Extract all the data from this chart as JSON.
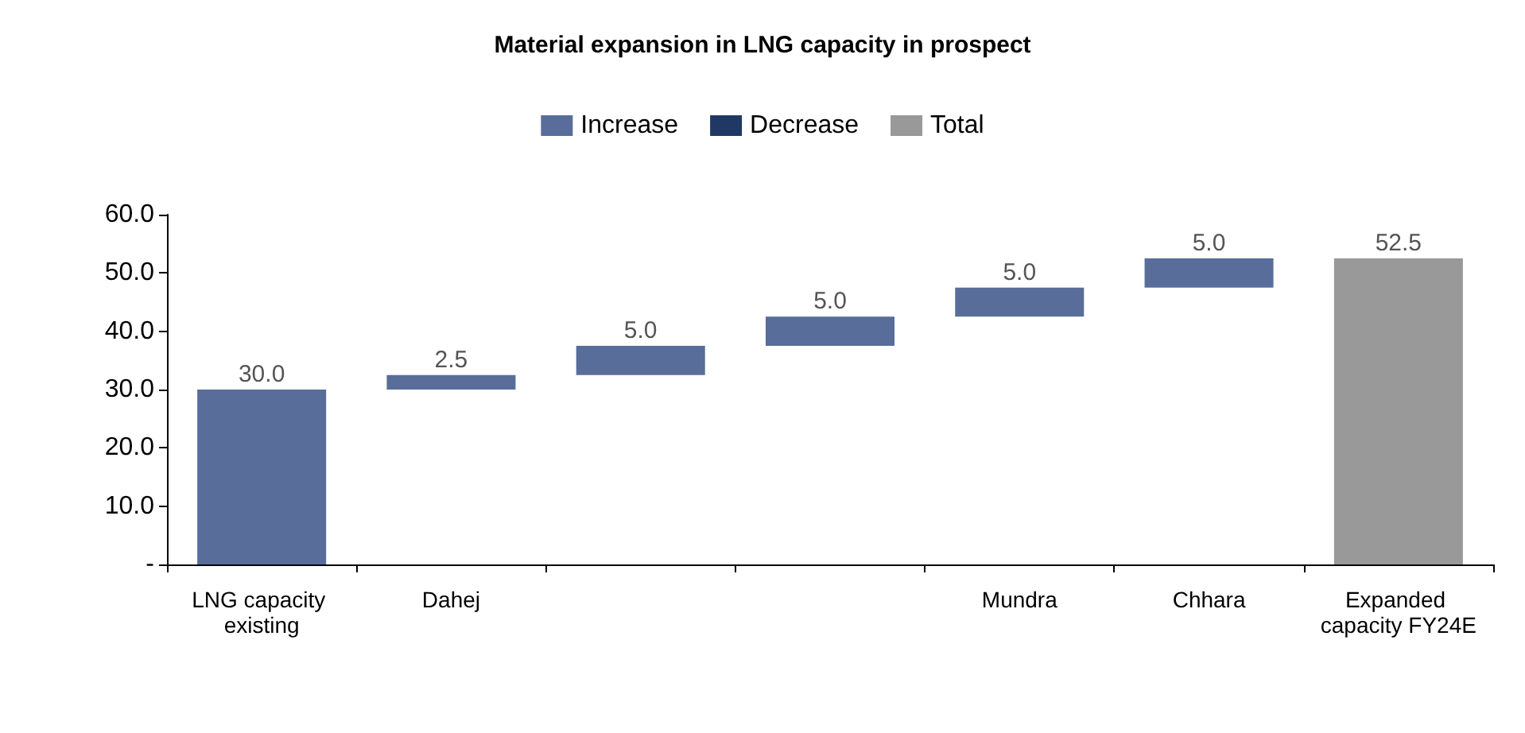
{
  "chart_data": {
    "type": "bar",
    "title": "Material expansion in LNG capacity in prospect",
    "categories": [
      "LNG capacity existing",
      "Dahej",
      null,
      null,
      "Mundra",
      "Chhara",
      "Expanded capacity FY24E"
    ],
    "series": [
      {
        "name": "Increase",
        "color": "#586d99",
        "base": [
          0,
          30,
          32.5,
          37.5,
          42.5,
          47.5,
          null
        ],
        "values": [
          30,
          2.5,
          5,
          5,
          5,
          5,
          null
        ],
        "value_labels": [
          "30.0",
          "2.5",
          "5.0",
          "5.0",
          "5.0",
          "5.0",
          null
        ]
      },
      {
        "name": "Decrease",
        "color": "#1f3864",
        "values": [
          null,
          null,
          null,
          null,
          null,
          null,
          null
        ]
      },
      {
        "name": "Total",
        "color": "#999999",
        "values": [
          null,
          null,
          null,
          null,
          null,
          null,
          52.5
        ],
        "value_labels": [
          null,
          null,
          null,
          null,
          null,
          null,
          "52.5"
        ]
      }
    ],
    "ylim": [
      0,
      60
    ],
    "yticks": [
      {
        "value": 0,
        "label": "-"
      },
      {
        "value": 10,
        "label": "10.0"
      },
      {
        "value": 20,
        "label": "20.0"
      },
      {
        "value": 30,
        "label": "30.0"
      },
      {
        "value": 40,
        "label": "40.0"
      },
      {
        "value": 50,
        "label": "50.0"
      },
      {
        "value": 60,
        "label": "60.0"
      }
    ],
    "grid": false,
    "legend": "top"
  }
}
